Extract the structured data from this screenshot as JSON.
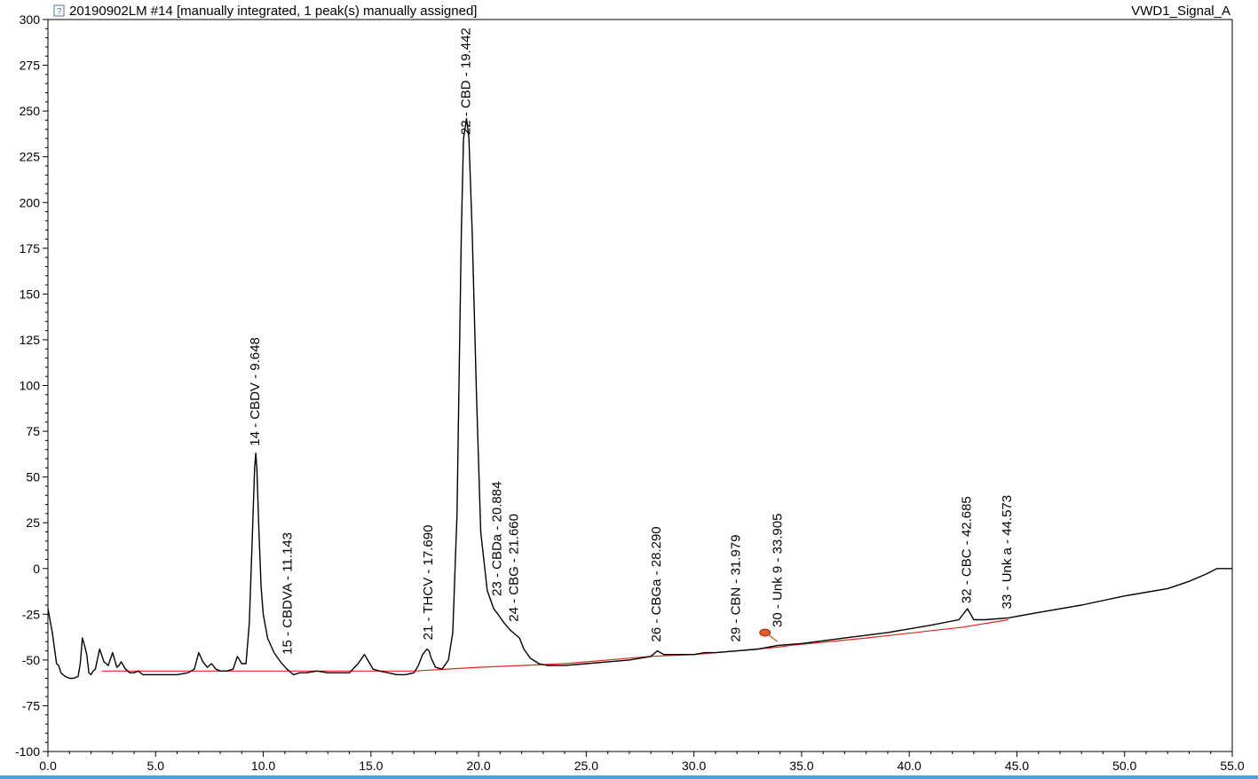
{
  "header": {
    "sample_info": "20190902LM #14 [manually integrated, 1 peak(s) manually assigned]",
    "signal_name": "VWD1_Signal_A",
    "info_icon": "info-icon"
  },
  "colors": {
    "trace": "#000000",
    "baseline": "#e8231c",
    "marker": "#e05a2b",
    "bottom_bar": "#4aa3df"
  },
  "chart_data": {
    "type": "line",
    "title": "",
    "xlabel": "",
    "ylabel": "",
    "xlim": [
      0,
      55
    ],
    "ylim": [
      -100,
      300
    ],
    "x_ticks": [
      0,
      5,
      10,
      15,
      20,
      25,
      30,
      35,
      40,
      45,
      50,
      55
    ],
    "x_tick_labels": [
      "0.0",
      "5.0",
      "10.0",
      "15.0",
      "20.0",
      "25.0",
      "30.0",
      "35.0",
      "40.0",
      "45.0",
      "50.0",
      "55.0"
    ],
    "y_ticks": [
      -100,
      -75,
      -50,
      -25,
      0,
      25,
      50,
      75,
      100,
      125,
      150,
      175,
      200,
      225,
      250,
      275,
      300
    ],
    "y_tick_labels": [
      "-100",
      "-75",
      "-50",
      "-25",
      "0",
      "25",
      "50",
      "75",
      "100",
      "125",
      "150",
      "175",
      "200",
      "225",
      "250",
      "275",
      "300"
    ],
    "grid": false,
    "series": [
      {
        "x": [
          0.0,
          0.2,
          0.4,
          0.5,
          0.6,
          0.8,
          1.0,
          1.2,
          1.4,
          1.5,
          1.6,
          1.7,
          1.8,
          1.9,
          2.0,
          2.1,
          2.2,
          2.4,
          2.6,
          2.7,
          2.8,
          3.0,
          3.2,
          3.3,
          3.4,
          3.6,
          3.8,
          4.0,
          4.2,
          4.4,
          4.6,
          4.8,
          5.0,
          5.5,
          6.0,
          6.5,
          6.8,
          7.0,
          7.2,
          7.4,
          7.6,
          7.8,
          8.0,
          8.3,
          8.6,
          8.8,
          9.0,
          9.2,
          9.35,
          9.5,
          9.6,
          9.65,
          9.7,
          9.8,
          9.9,
          10.0,
          10.2,
          10.5,
          10.8,
          11.1,
          11.4,
          11.7,
          12.0,
          12.5,
          13.0,
          13.5,
          14.0,
          14.4,
          14.7,
          14.9,
          15.1,
          15.4,
          15.8,
          16.2,
          16.6,
          17.0,
          17.2,
          17.4,
          17.6,
          17.7,
          17.8,
          18.0,
          18.3,
          18.6,
          18.8,
          19.0,
          19.1,
          19.2,
          19.3,
          19.44,
          19.55,
          19.7,
          19.9,
          20.1,
          20.4,
          20.7,
          20.9,
          21.2,
          21.5,
          21.7,
          21.9,
          22.1,
          22.4,
          22.8,
          23.2,
          23.6,
          24.0,
          25.0,
          26.0,
          27.0,
          28.0,
          28.3,
          28.6,
          29.0,
          30.0,
          30.5,
          31.0,
          32.0,
          33.0,
          33.9,
          35.0,
          37.0,
          39.0,
          41.0,
          42.3,
          42.7,
          43.0,
          43.5,
          44.6,
          46.0,
          48.0,
          50.0,
          52.0,
          53.0,
          53.8,
          54.3,
          54.7,
          55.0
        ],
        "y": [
          -22,
          -35,
          -52,
          -53,
          -57,
          -59,
          -60,
          -60,
          -59,
          -52,
          -38,
          -42,
          -47,
          -57,
          -58,
          -56,
          -55,
          -44,
          -51,
          -52,
          -53,
          -46,
          -54,
          -53,
          -51,
          -55,
          -57,
          -57,
          -56,
          -58,
          -58,
          -58,
          -58,
          -58,
          -58,
          -57,
          -55,
          -46,
          -51,
          -54,
          -52,
          -55,
          -56,
          -56,
          -55,
          -48,
          -52,
          -52,
          -30,
          20,
          55,
          63,
          55,
          20,
          -10,
          -25,
          -38,
          -46,
          -51,
          -55,
          -58,
          -57,
          -57,
          -56,
          -57,
          -57,
          -57,
          -52,
          -47,
          -51,
          -55,
          -56,
          -57,
          -58,
          -58,
          -57,
          -53,
          -47,
          -44,
          -45,
          -49,
          -54,
          -55,
          -50,
          -35,
          30,
          110,
          185,
          235,
          246,
          235,
          185,
          95,
          20,
          -12,
          -22,
          -25,
          -30,
          -34,
          -36,
          -38,
          -44,
          -49,
          -52,
          -53,
          -53,
          -53,
          -52,
          -51,
          -50,
          -48,
          -45,
          -47,
          -47,
          -47,
          -46,
          -46,
          -45,
          -44,
          -42,
          -41,
          -38,
          -35,
          -31,
          -28,
          -22,
          -28,
          -28,
          -27,
          -24,
          -20,
          -15,
          -11,
          -7,
          -3,
          0,
          0,
          0
        ]
      }
    ],
    "baseline_x": [
      2.5,
      10.0,
      15.0,
      17.0,
      20.0,
      24.0,
      28.0,
      30.0,
      32.0,
      33.9,
      34.5,
      38.0,
      42.5,
      44.6
    ],
    "baseline_y": [
      -56,
      -56,
      -56,
      -56,
      -54,
      -52,
      -48,
      -47,
      -45,
      -43,
      -42,
      -38,
      -32,
      -28
    ],
    "peaks": [
      {
        "label": "14 - CBDV - 9.648",
        "rt": 9.648,
        "label_y": 64
      },
      {
        "label": "15 - CBDVA - 11.143",
        "rt": 11.143,
        "label_y": -50
      },
      {
        "label": "21 - THCV - 17.690",
        "rt": 17.69,
        "label_y": -42
      },
      {
        "label": "22 - CBD - 19.442",
        "rt": 19.442,
        "label_y": 234
      },
      {
        "label": "23 - CBDa - 20.884",
        "rt": 20.884,
        "label_y": -18
      },
      {
        "label": "24 - CBG - 21.660",
        "rt": 21.66,
        "label_y": -32
      },
      {
        "label": "26 - CBGa - 28.290",
        "rt": 28.29,
        "label_y": -43
      },
      {
        "label": "29 - CBN - 31.979",
        "rt": 31.979,
        "label_y": -43
      },
      {
        "label": "30 - Unk 9 - 33.905",
        "rt": 33.905,
        "label_y": -35
      },
      {
        "label": "32 - CBC - 42.685",
        "rt": 42.685,
        "label_y": -22
      },
      {
        "label": "33 - Unk a - 44.573",
        "rt": 44.573,
        "label_y": -25
      }
    ],
    "marker": {
      "x": 33.3,
      "y": -35
    }
  }
}
